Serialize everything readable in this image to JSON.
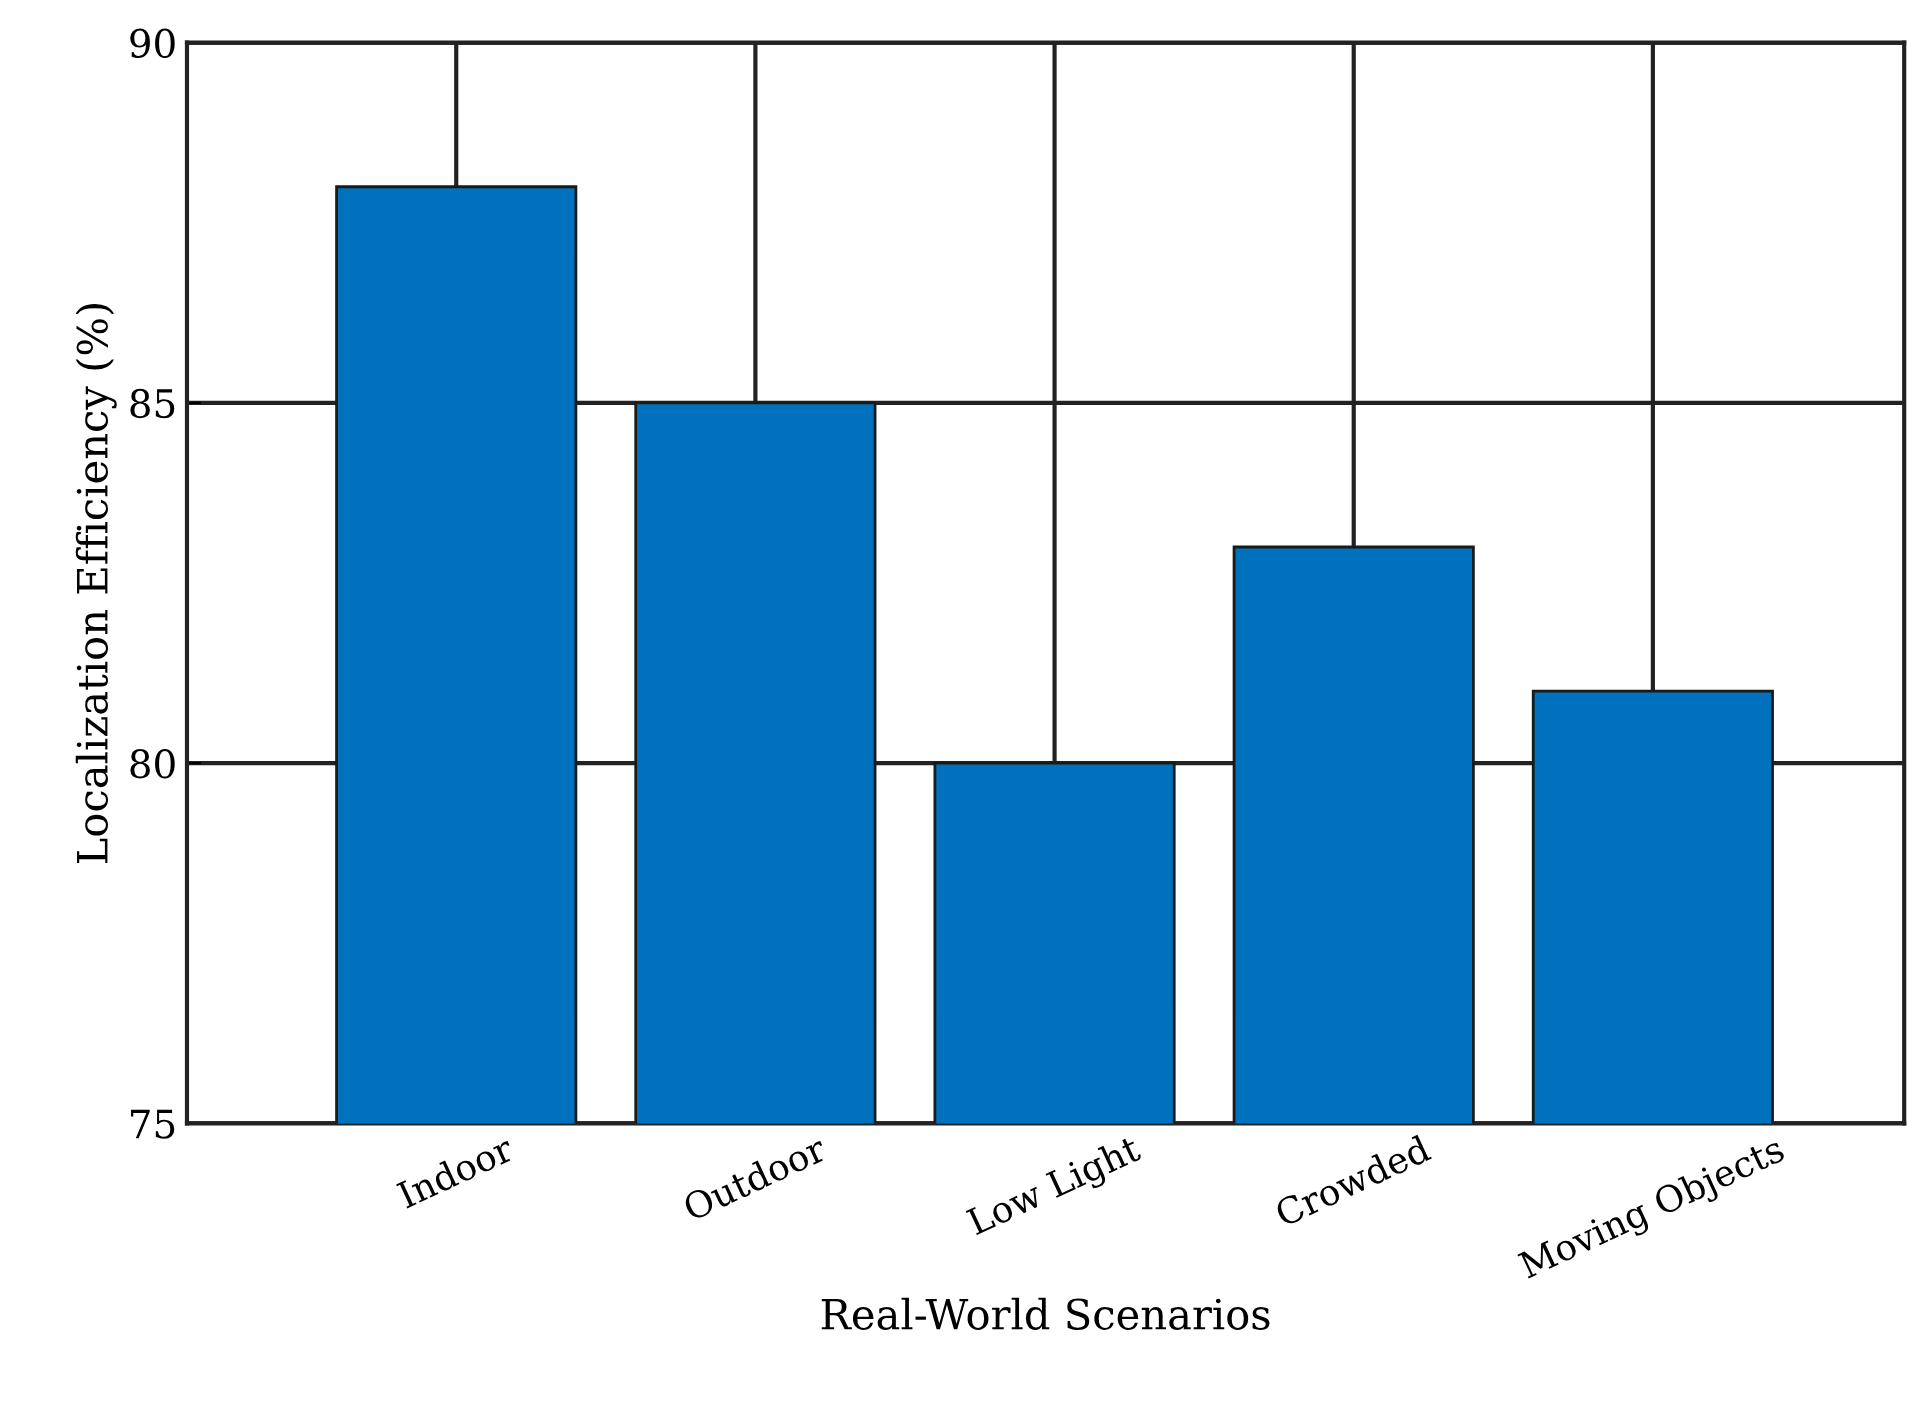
{
  "chart_data": {
    "type": "bar",
    "xlabel": "Real-World Scenarios",
    "ylabel": "Localization Efficiency (%)",
    "categories": [
      "Indoor",
      "Outdoor",
      "Low Light",
      "Crowded",
      "Moving Objects"
    ],
    "values": [
      88,
      85,
      80,
      83,
      81
    ],
    "color": "#0072bd",
    "ylim": [
      75,
      90
    ],
    "yticks": [
      75,
      80,
      85,
      90
    ],
    "grid": true
  }
}
